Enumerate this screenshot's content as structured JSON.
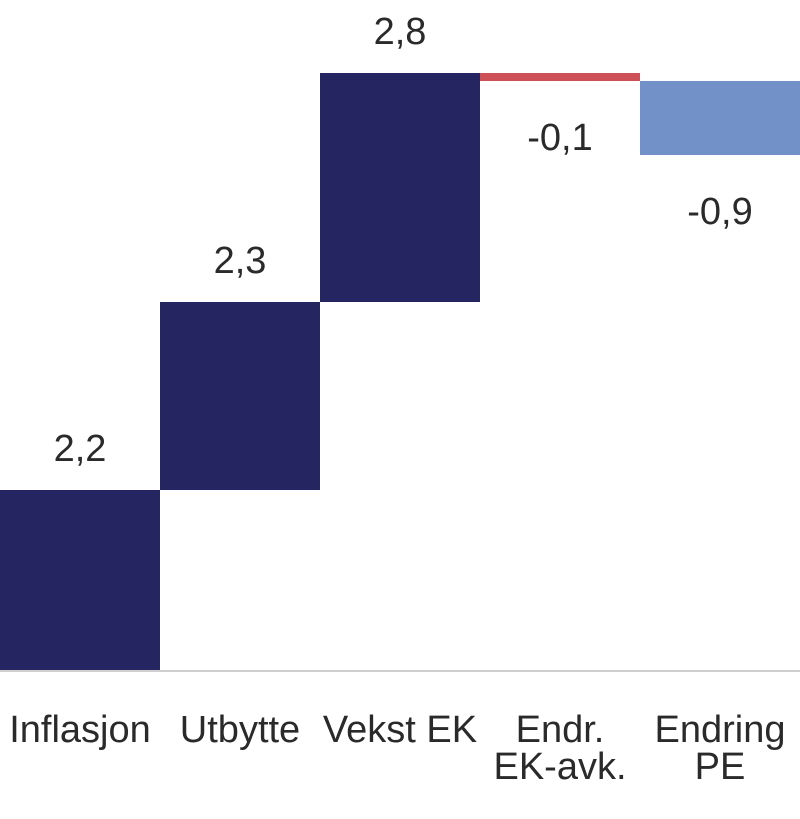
{
  "chart_data": {
    "type": "bar",
    "subtype": "waterfall",
    "title": "",
    "xlabel": "",
    "ylabel": "",
    "categories": [
      "Inflasjon",
      "Utbytte",
      "Vekst EK",
      "Endr. EK-avk.",
      "Endring PE"
    ],
    "category_label_lines": [
      [
        "Inflasjon"
      ],
      [
        "Utbytte"
      ],
      [
        "Vekst EK"
      ],
      [
        "Endr.",
        "EK-avk."
      ],
      [
        "Endring",
        "PE"
      ]
    ],
    "values": [
      2.2,
      2.3,
      2.8,
      -0.1,
      -0.9
    ],
    "value_labels": [
      "2,2",
      "2,3",
      "2,8",
      "-0,1",
      "-0,9"
    ],
    "cumulative_levels": [
      0,
      2.2,
      4.5,
      7.3,
      7.2,
      6.3
    ],
    "bar_colors": [
      "#252561",
      "#252561",
      "#252561",
      "#ce5157",
      "#7291c8"
    ],
    "colors": {
      "positive_bar": "#252561",
      "negative_small_bar": "#ce5157",
      "negative_large_bar": "#7291c8",
      "axis_line": "#cfcfcf",
      "text": "#2a2a2a",
      "background": "#ffffff"
    },
    "decimal_separator": ",",
    "ylim": [
      0,
      7.3
    ],
    "gridlines": false,
    "legend": null,
    "y_axis_visible": false,
    "value_label_position": "outside-end"
  }
}
